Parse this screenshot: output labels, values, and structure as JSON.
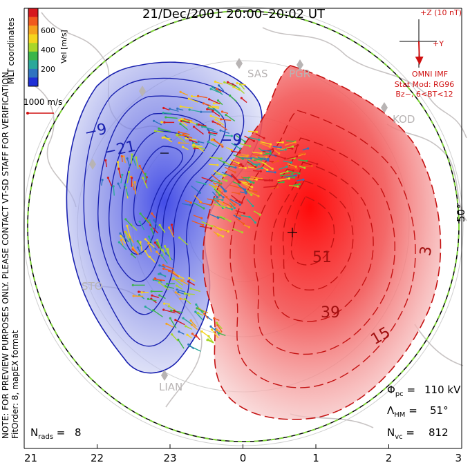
{
  "title": "21/Dec/2001 20:00–20:02 UT",
  "colorbar": {
    "ticks": [
      "600",
      "400",
      "200"
    ],
    "label": "Vel [m/s]",
    "colors": [
      "#d6181e",
      "#f05a1e",
      "#f5a21e",
      "#f5d51e",
      "#a9d62a",
      "#3ab54a",
      "#2aa89a",
      "#2f74c0",
      "#1e2fd6"
    ]
  },
  "coord_label": "MLT coordinates",
  "vector_scale": "1000 m/s",
  "imf": {
    "z_label": "+Z (10 nT)",
    "y_label": "+Y",
    "source": "OMNI IMF",
    "model_line1": "Stat Mod: RG96",
    "model_line2": "Bz−, 6<BT<12"
  },
  "stations": [
    "SAS",
    "PGR",
    "KOD",
    "STO",
    "LIAN"
  ],
  "latitude_label": "50°",
  "contour_labels": {
    "negative": [
      "−9",
      "−21",
      "−9"
    ],
    "positive": [
      "51",
      "39",
      "15",
      "3"
    ]
  },
  "notes": {
    "preview": "NOTE: FOR PREVIEW PURPOSES ONLY. PLEASE CONTACT VT-SD STAFF FOR VERIFICATION.",
    "fit": "FitOrder: 8, mapEX format"
  },
  "stats": {
    "phi_pc": "110 kV",
    "lambda_hm": "51°",
    "n_vc": "812",
    "n_rads": "8"
  },
  "mlt_ticks": [
    "21",
    "22",
    "23",
    "0",
    "1",
    "2",
    "3"
  ],
  "colors": {
    "dusk_cell": "#2a36d8",
    "dawn_cell": "#ee1c1c",
    "boundary": "#7fd43a",
    "imf_red": "#d01010",
    "station_gray": "#b8b4b4"
  }
}
